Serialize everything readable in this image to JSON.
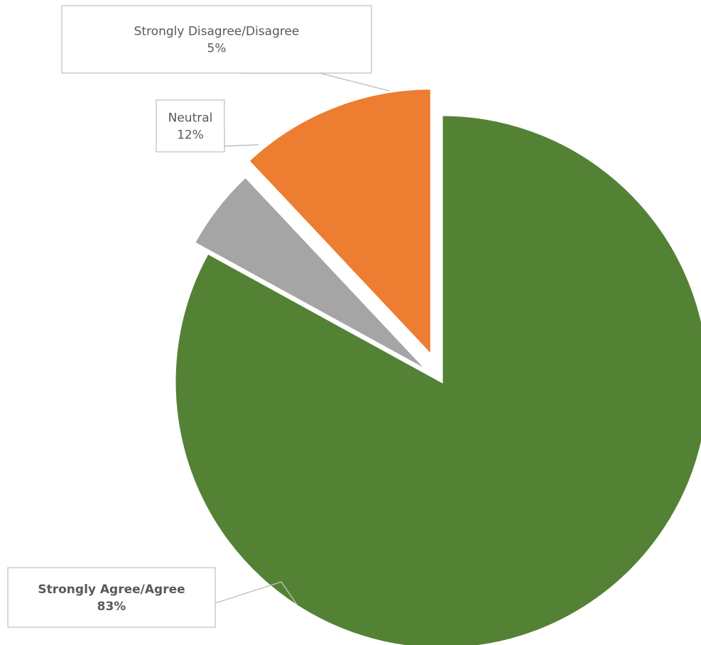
{
  "chart_data": {
    "type": "pie",
    "title": "",
    "slices": [
      {
        "label": "Strongly Agree/Agree",
        "value": 83,
        "value_label": "83%",
        "color": "#548235",
        "label_color": "#548235",
        "label_bold": true
      },
      {
        "label": "Strongly Disagree/Disagree",
        "value": 5,
        "value_label": "5%",
        "color": "#a5a5a5",
        "label_color": "#595959",
        "label_bold": false
      },
      {
        "label": "Neutral",
        "value": 12,
        "value_label": "12%",
        "color": "#ed7d31",
        "label_color": "#595959",
        "label_bold": false
      }
    ],
    "start_angle_deg": 0,
    "direction": "clockwise",
    "exploded": true,
    "legend": "none"
  }
}
